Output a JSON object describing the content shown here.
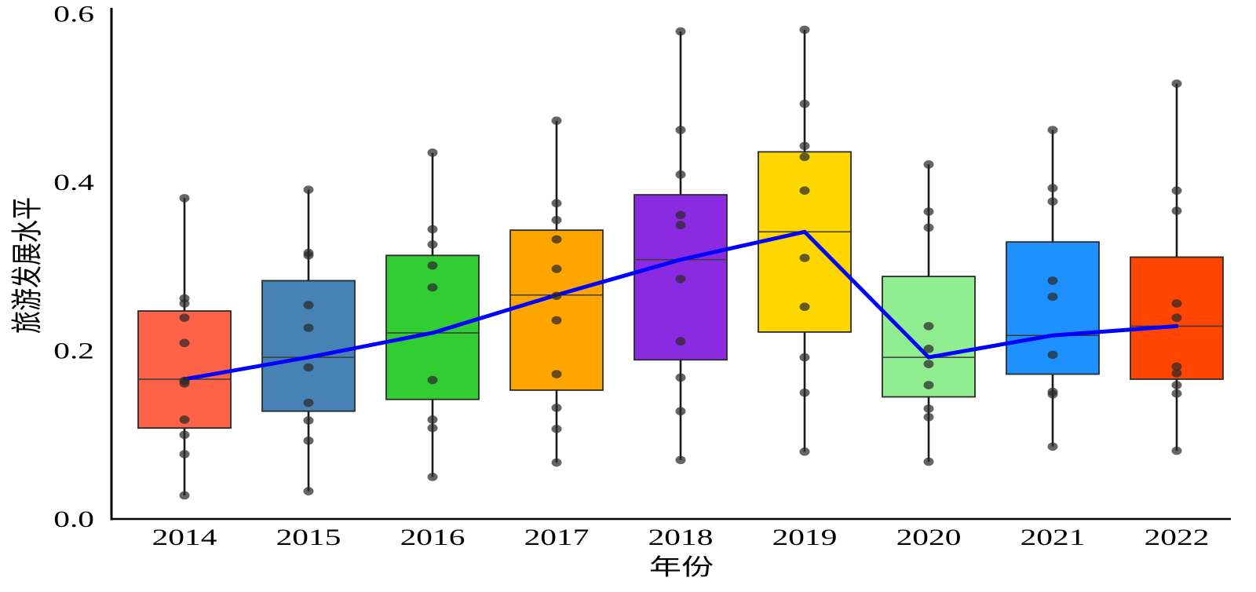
{
  "chart_data": {
    "type": "box",
    "xlabel": "年份",
    "ylabel": "旅游发展水平",
    "categories": [
      "2014",
      "2015",
      "2016",
      "2017",
      "2018",
      "2019",
      "2020",
      "2021",
      "2022"
    ],
    "ylim": [
      0,
      0.6
    ],
    "yticks": [
      0.0,
      0.2,
      0.4,
      0.6
    ],
    "ytick_labels": [
      "0.0",
      "0.2",
      "0.4",
      "0.6"
    ],
    "grid": false,
    "median_line_color": "#0000FF",
    "point_color": "#2a2a2a",
    "whisker_color": "#1a1a1a",
    "box_edge_color": "#2b2b2b",
    "boxes": [
      {
        "color": "#FF6347",
        "whisker_low": 0.028,
        "q1": 0.108,
        "median": 0.166,
        "q3": 0.247,
        "whisker_high": 0.381,
        "points": [
          0.381,
          0.262,
          0.256,
          0.239,
          0.209,
          0.164,
          0.161,
          0.118,
          0.1,
          0.077,
          0.028
        ]
      },
      {
        "color": "#4682B4",
        "whisker_low": 0.033,
        "q1": 0.128,
        "median": 0.192,
        "q3": 0.283,
        "whisker_high": 0.391,
        "points": [
          0.391,
          0.316,
          0.313,
          0.254,
          0.227,
          0.18,
          0.138,
          0.117,
          0.093,
          0.033
        ]
      },
      {
        "color": "#32CD32",
        "whisker_low": 0.05,
        "q1": 0.142,
        "median": 0.221,
        "q3": 0.313,
        "whisker_high": 0.435,
        "points": [
          0.435,
          0.344,
          0.326,
          0.301,
          0.275,
          0.165,
          0.118,
          0.108,
          0.05
        ]
      },
      {
        "color": "#FFA500",
        "whisker_low": 0.067,
        "q1": 0.153,
        "median": 0.266,
        "q3": 0.343,
        "whisker_high": 0.473,
        "points": [
          0.473,
          0.375,
          0.355,
          0.332,
          0.297,
          0.265,
          0.236,
          0.172,
          0.132,
          0.107,
          0.067
        ]
      },
      {
        "color": "#8A2BE2",
        "whisker_low": 0.07,
        "q1": 0.189,
        "median": 0.308,
        "q3": 0.385,
        "whisker_high": 0.579,
        "points": [
          0.579,
          0.462,
          0.409,
          0.361,
          0.349,
          0.285,
          0.211,
          0.168,
          0.128,
          0.07
        ]
      },
      {
        "color": "#FFD700",
        "whisker_low": 0.08,
        "q1": 0.222,
        "median": 0.341,
        "q3": 0.436,
        "whisker_high": 0.581,
        "points": [
          0.581,
          0.493,
          0.443,
          0.43,
          0.39,
          0.31,
          0.252,
          0.192,
          0.15,
          0.08
        ]
      },
      {
        "color": "#90EE90",
        "whisker_low": 0.068,
        "q1": 0.145,
        "median": 0.192,
        "q3": 0.288,
        "whisker_high": 0.421,
        "points": [
          0.421,
          0.365,
          0.346,
          0.229,
          0.202,
          0.184,
          0.159,
          0.131,
          0.121,
          0.068
        ]
      },
      {
        "color": "#1E90FF",
        "whisker_low": 0.086,
        "q1": 0.172,
        "median": 0.218,
        "q3": 0.329,
        "whisker_high": 0.462,
        "points": [
          0.462,
          0.393,
          0.377,
          0.283,
          0.264,
          0.195,
          0.151,
          0.148,
          0.086
        ]
      },
      {
        "color": "#FF4500",
        "whisker_low": 0.081,
        "q1": 0.166,
        "median": 0.229,
        "q3": 0.311,
        "whisker_high": 0.517,
        "points": [
          0.517,
          0.39,
          0.366,
          0.256,
          0.239,
          0.181,
          0.173,
          0.159,
          0.149,
          0.081
        ]
      }
    ]
  }
}
